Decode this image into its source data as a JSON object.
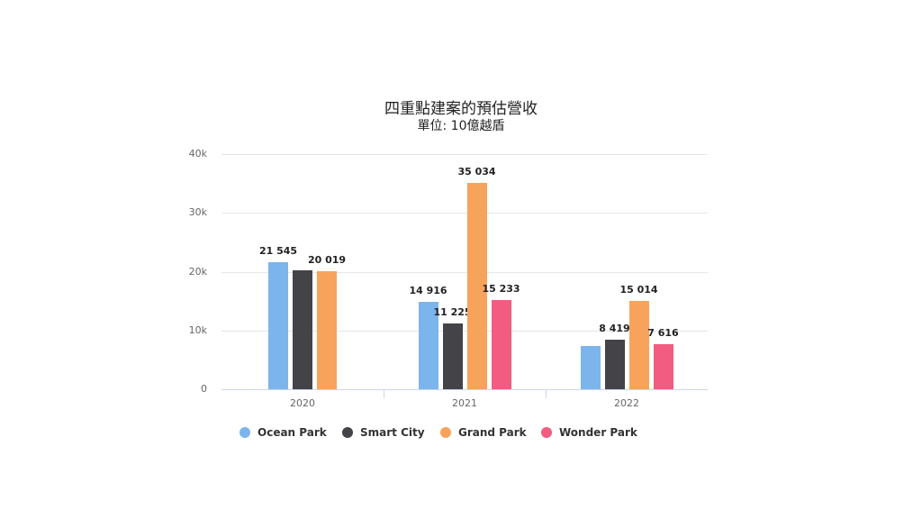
{
  "chart_data": {
    "type": "bar",
    "title": "四重點建案的預估營收",
    "subtitle": "單位: 10億越盾",
    "xlabel": "",
    "ylabel": "",
    "ylim": [
      0,
      40000
    ],
    "yticks": [
      "0",
      "10k",
      "20k",
      "30k",
      "40k"
    ],
    "grid": true,
    "legend_position": "bottom",
    "categories": [
      "2020",
      "2021",
      "2022"
    ],
    "series": [
      {
        "name": "Ocean Park",
        "color": "#7cb5ec",
        "values": [
          21545,
          14916,
          7300
        ],
        "labels": [
          "21 545",
          "14 916",
          ""
        ]
      },
      {
        "name": "Smart City",
        "color": "#434348",
        "values": [
          20300,
          11225,
          8419
        ],
        "labels": [
          "",
          "11 225",
          "8 419"
        ]
      },
      {
        "name": "Grand Park",
        "color": "#f7a35c",
        "values": [
          20019,
          35034,
          15014
        ],
        "labels": [
          "20 019",
          "35 034",
          "15 014"
        ]
      },
      {
        "name": "Wonder Park",
        "color": "#f15c80",
        "values": [
          null,
          15233,
          7616
        ],
        "labels": [
          "",
          "15 233",
          "7 616"
        ]
      }
    ]
  }
}
